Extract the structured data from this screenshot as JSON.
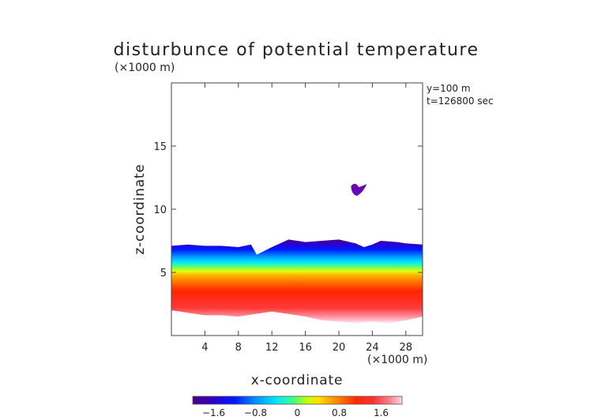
{
  "chart_data": {
    "type": "heatmap",
    "title": "disturbunce of potential temperature",
    "xlabel": "x-coordinate",
    "ylabel": "z-coordinate",
    "x_unit": "(×1000 m)",
    "y_unit": "(×1000 m)",
    "annotations": [
      "y=100 m",
      "t=126800 sec"
    ],
    "xlim": [
      0,
      30
    ],
    "ylim": [
      0,
      20
    ],
    "x_ticks": [
      "4",
      "8",
      "12",
      "16",
      "20",
      "24",
      "28"
    ],
    "y_ticks": [
      "5",
      "10",
      "15"
    ],
    "x_tick_values": [
      4,
      8,
      12,
      16,
      20,
      24,
      28
    ],
    "y_tick_values": [
      5,
      10,
      15
    ],
    "colorbar": {
      "ticks": [
        "−1.6",
        "−0.8",
        "0",
        "0.8",
        "1.6"
      ],
      "tick_values": [
        -1.6,
        -0.8,
        0,
        0.8,
        1.6
      ],
      "range": [
        -2.0,
        2.0
      ],
      "colors": [
        "#4b0082",
        "#2f00c8",
        "#0018ff",
        "#0090ff",
        "#00e8ff",
        "#40ff80",
        "#c8ff00",
        "#ffe000",
        "#ff9000",
        "#ff2a00",
        "#ff3030",
        "#ff8090",
        "#ffd8dc"
      ]
    },
    "field": {
      "description": "perturbation layer below ~7 km",
      "top_profile_x": [
        0,
        2,
        4,
        6,
        8,
        9.5,
        10.2,
        12,
        14,
        16,
        18,
        20,
        22,
        23,
        24,
        25,
        27,
        28,
        30
      ],
      "top_profile_z": [
        7.1,
        7.2,
        7.1,
        7.1,
        7.0,
        7.2,
        6.4,
        7.0,
        7.6,
        7.4,
        7.5,
        7.6,
        7.3,
        7.0,
        7.2,
        7.5,
        7.4,
        7.3,
        7.2
      ],
      "bottom_profile_x": [
        0,
        2,
        4,
        6,
        8,
        10,
        12,
        14,
        16,
        18,
        20,
        22,
        24,
        26,
        28,
        30
      ],
      "bottom_profile_z": [
        2.0,
        1.8,
        1.6,
        1.6,
        1.5,
        1.7,
        1.9,
        1.7,
        1.5,
        1.2,
        1.1,
        1.0,
        1.1,
        1.0,
        1.2,
        1.5
      ],
      "cold_patch": {
        "x": 22.2,
        "z": 11.5,
        "value": -2.0
      }
    }
  }
}
